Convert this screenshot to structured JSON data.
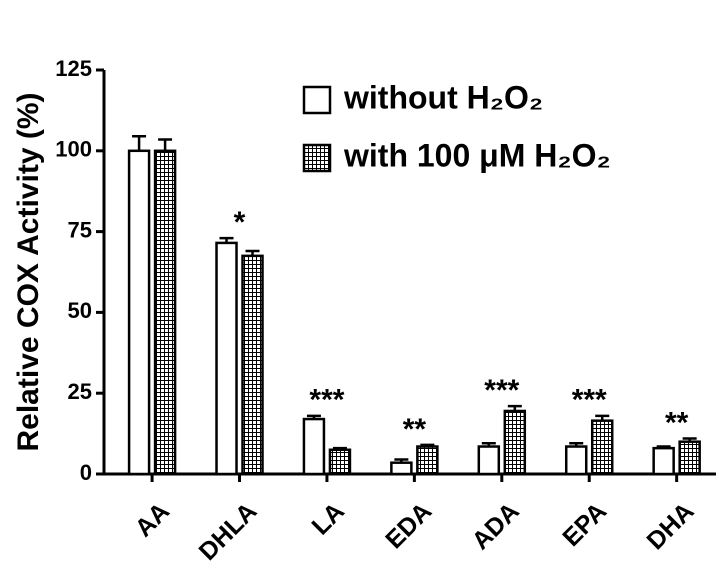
{
  "chart_data": {
    "type": "bar",
    "ylabel": "Relative COX Activity (%)",
    "categories": [
      "AA",
      "DHLA",
      "LA",
      "EDA",
      "ADA",
      "EPA",
      "DHA"
    ],
    "series": [
      {
        "name": "without H₂O₂",
        "color": "#ffffff",
        "hatch": false,
        "values": [
          100,
          71.5,
          17,
          3.5,
          8.5,
          8.5,
          8
        ],
        "errors": [
          4.5,
          1.5,
          1,
          1,
          1,
          1,
          0.5
        ]
      },
      {
        "name": "with 100 μM H₂O₂",
        "color": "#ffffff",
        "hatch": true,
        "values": [
          100,
          67.5,
          7.5,
          8.5,
          19.5,
          16.5,
          10
        ],
        "errors": [
          3.5,
          1.5,
          0.5,
          0.5,
          1.5,
          1.5,
          1
        ]
      }
    ],
    "significance": [
      null,
      "*",
      "***",
      "**",
      "***",
      "***",
      "**"
    ],
    "ylim": [
      0,
      125
    ],
    "yticks": [
      0,
      25,
      50,
      75,
      100,
      125
    ],
    "legend": "upper right"
  }
}
